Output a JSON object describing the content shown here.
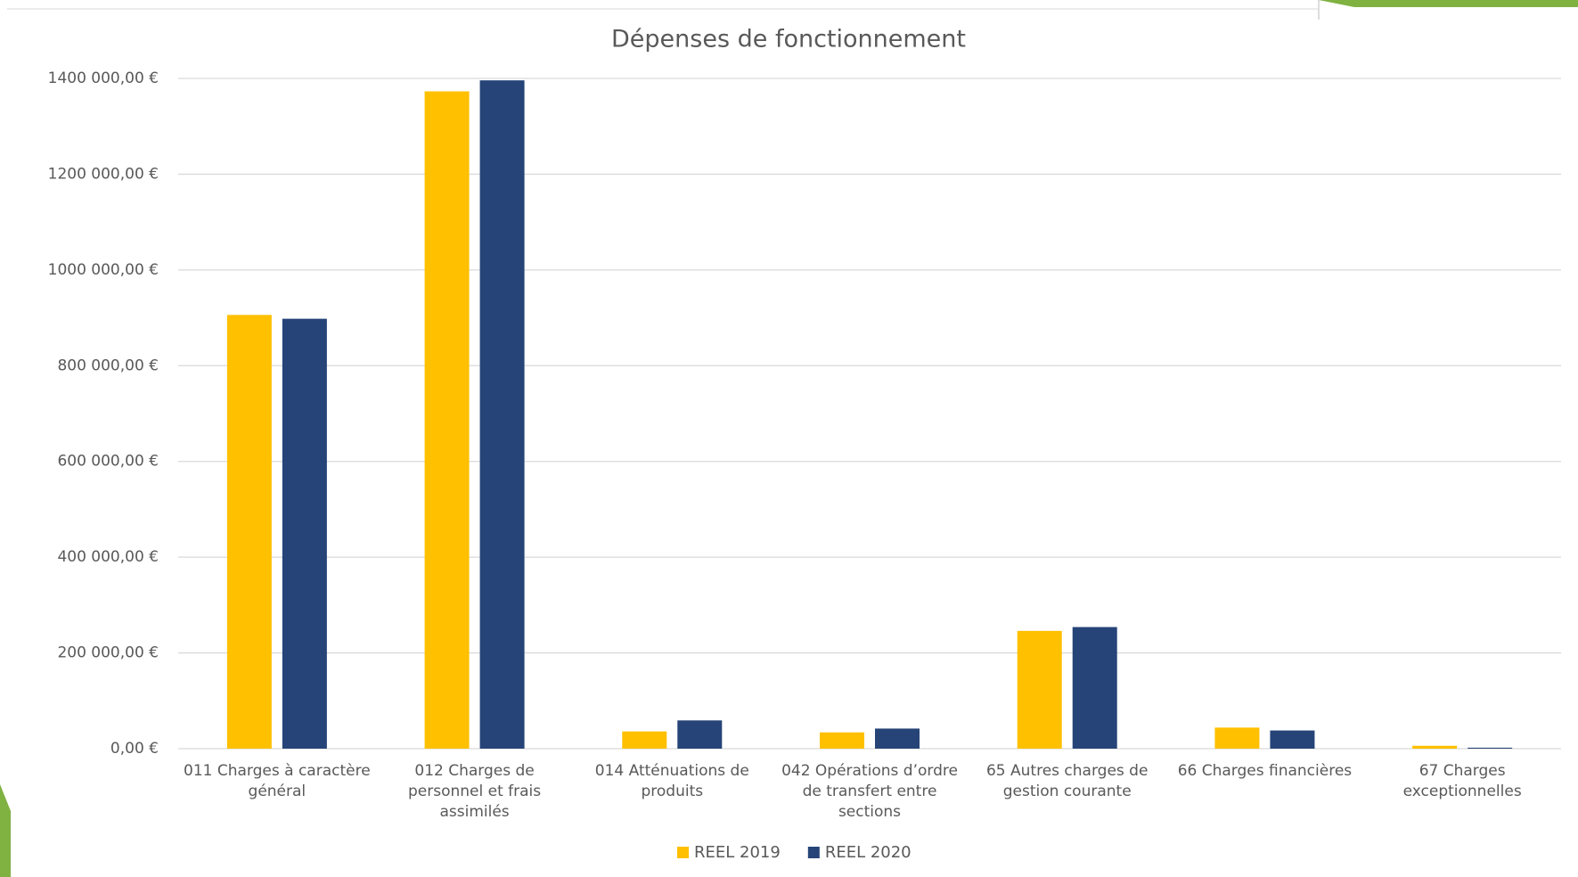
{
  "chart_data": {
    "type": "bar",
    "title": "Dépenses de fonctionnement",
    "categories": [
      "011 Charges à caractère général",
      "012 Charges de personnel et frais assimilés",
      "014 Atténuations de produits",
      "042 Opérations d’ordre de transfert entre sections",
      "65 Autres charges de gestion courante",
      "66 Charges financières",
      "67 Charges exceptionnelles"
    ],
    "series": [
      {
        "name": "REEL 2019",
        "color": "#ffc000",
        "values": [
          906000,
          1373000,
          36000,
          34000,
          246000,
          44000,
          6000
        ]
      },
      {
        "name": "REEL 2020",
        "color": "#264478",
        "values": [
          898000,
          1396000,
          59000,
          42000,
          254000,
          38000,
          2000
        ]
      }
    ],
    "ylim": [
      0,
      1400000
    ],
    "yticks": [
      {
        "value": 0,
        "label": "0,00 €"
      },
      {
        "value": 200000,
        "label": "200 000,00 €"
      },
      {
        "value": 400000,
        "label": "400 000,00 €"
      },
      {
        "value": 600000,
        "label": "600 000,00 €"
      },
      {
        "value": 800000,
        "label": "800 000,00 €"
      },
      {
        "value": 1000000,
        "label": "1000 000,00 €"
      },
      {
        "value": 1200000,
        "label": "1200 000,00 €"
      },
      {
        "value": 1400000,
        "label": "1400 000,00 €"
      }
    ],
    "grid": true,
    "legend": "bottom"
  }
}
